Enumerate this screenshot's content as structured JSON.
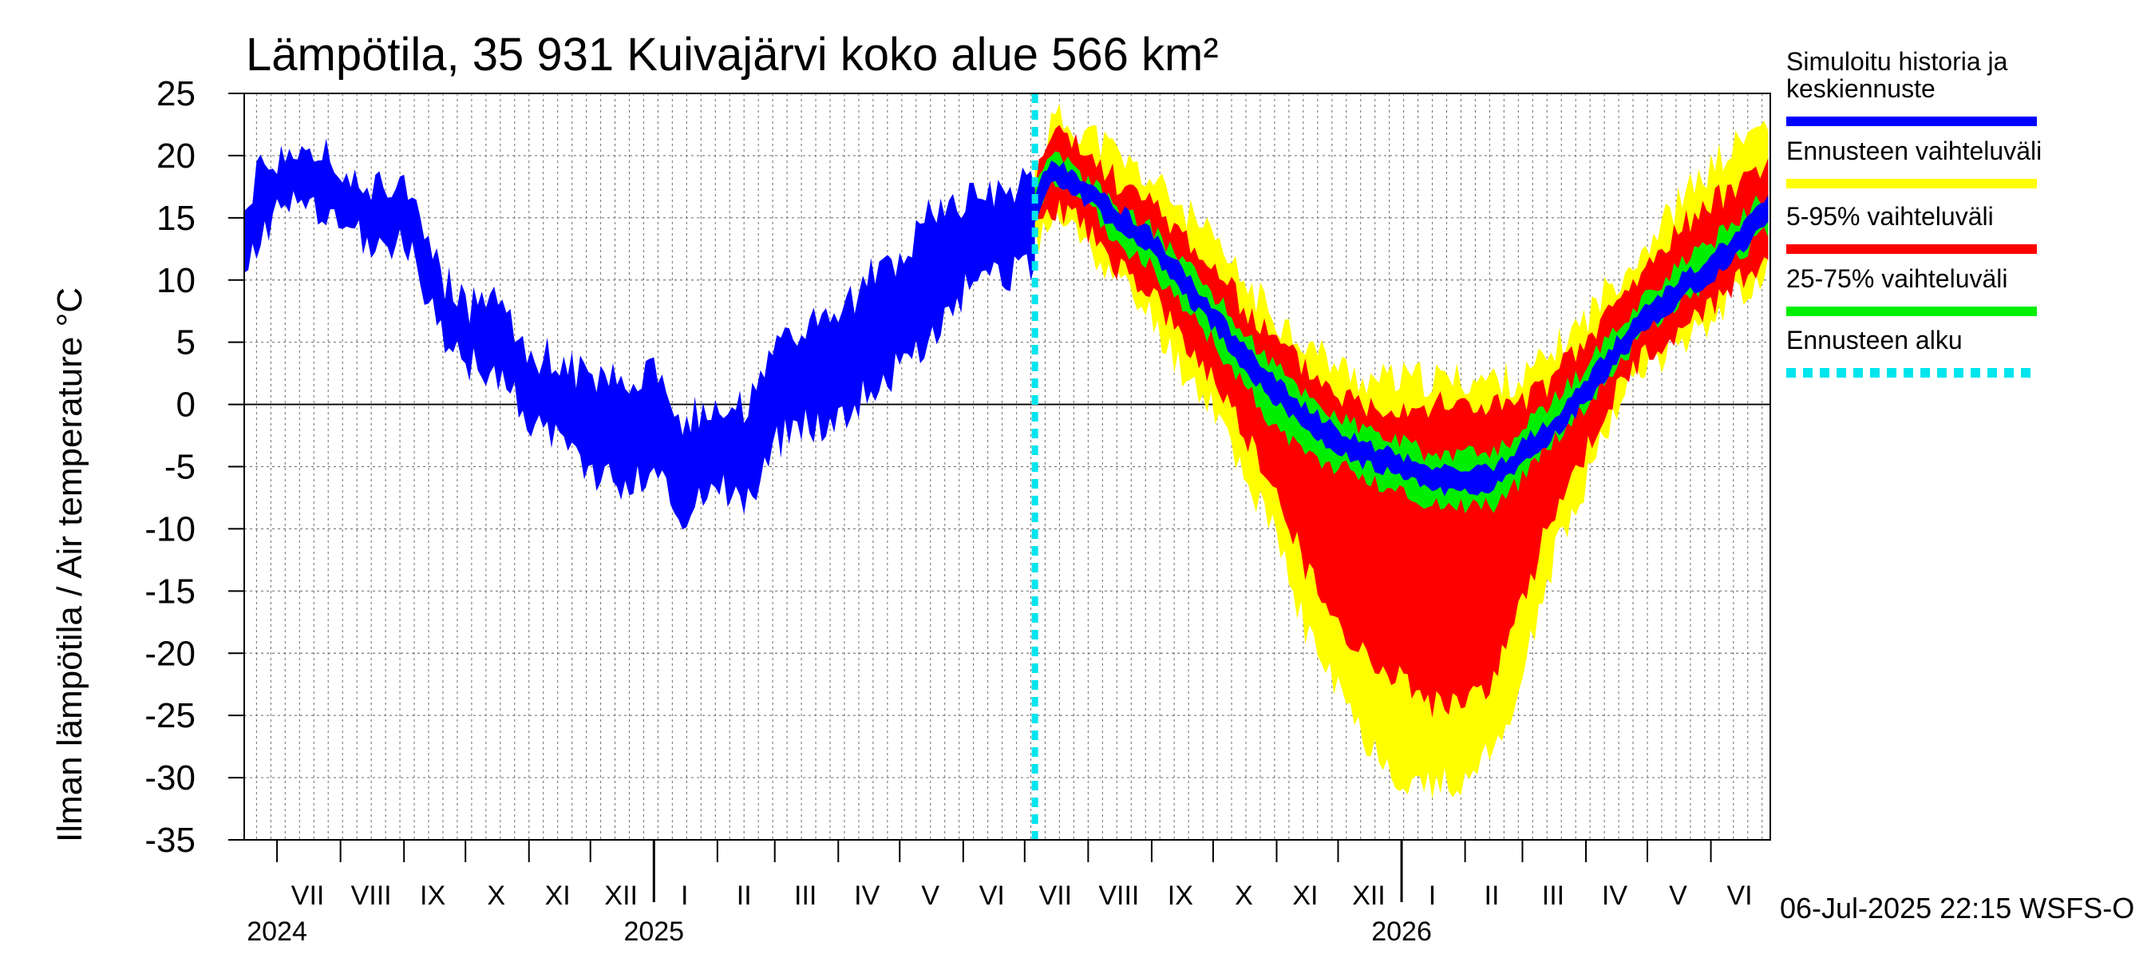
{
  "chart_data": {
    "type": "area",
    "title": "Lämpötila, 35 931 Kuivajärvi koko alue 566 km²",
    "ylabel": "Ilman lämpötila / Air temperature    °C",
    "ylim": [
      -35,
      25
    ],
    "yticks": [
      25,
      20,
      15,
      10,
      5,
      0,
      -5,
      -10,
      -15,
      -20,
      -25,
      -30,
      -35
    ],
    "x_range": [
      "2024-06-15",
      "2026-06-30"
    ],
    "month_labels": [
      {
        "label": "VII",
        "date": "2024-07-16"
      },
      {
        "label": "VIII",
        "date": "2024-08-16"
      },
      {
        "label": "IX",
        "date": "2024-09-15"
      },
      {
        "label": "X",
        "date": "2024-10-16"
      },
      {
        "label": "XI",
        "date": "2024-11-15"
      },
      {
        "label": "XII",
        "date": "2024-12-16"
      },
      {
        "label": "I",
        "date": "2025-01-16"
      },
      {
        "label": "II",
        "date": "2025-02-14"
      },
      {
        "label": "III",
        "date": "2025-03-16"
      },
      {
        "label": "IV",
        "date": "2025-04-15"
      },
      {
        "label": "V",
        "date": "2025-05-16"
      },
      {
        "label": "VI",
        "date": "2025-06-15"
      },
      {
        "label": "VII",
        "date": "2025-07-16"
      },
      {
        "label": "VIII",
        "date": "2025-08-16"
      },
      {
        "label": "IX",
        "date": "2025-09-15"
      },
      {
        "label": "X",
        "date": "2025-10-16"
      },
      {
        "label": "XI",
        "date": "2025-11-15"
      },
      {
        "label": "XII",
        "date": "2025-12-16"
      },
      {
        "label": "I",
        "date": "2026-01-16"
      },
      {
        "label": "II",
        "date": "2026-02-14"
      },
      {
        "label": "III",
        "date": "2026-03-16"
      },
      {
        "label": "IV",
        "date": "2026-04-15"
      },
      {
        "label": "V",
        "date": "2026-05-16"
      },
      {
        "label": "VI",
        "date": "2026-06-15"
      }
    ],
    "year_labels": [
      {
        "label": "2024",
        "date": "2024-07-01"
      },
      {
        "label": "2025",
        "date": "2025-01-01"
      },
      {
        "label": "2026",
        "date": "2026-01-01"
      }
    ],
    "forecast_start": "2025-07-06",
    "legend_position": "right",
    "legend": [
      {
        "label": "Simuloitu historia ja keskiennuste",
        "color": "#0000ff",
        "style": "solid"
      },
      {
        "label": "Ennusteen vaihteluväli",
        "color": "#ffff00",
        "style": "solid"
      },
      {
        "label": "5-95% vaihteluväli",
        "color": "#ff0000",
        "style": "solid"
      },
      {
        "label": "25-75% vaihteluväli",
        "color": "#00ee00",
        "style": "solid"
      },
      {
        "label": "Ennusteen alku",
        "color": "#00e5ee",
        "style": "dashed"
      }
    ],
    "history": {
      "name": "Simuloitu historia ja keskiennuste",
      "color": "#0000ff",
      "x": [
        "2024-06-15",
        "2024-07-01",
        "2024-07-15",
        "2024-08-01",
        "2024-08-15",
        "2024-09-01",
        "2024-09-10",
        "2024-09-20",
        "2024-10-01",
        "2024-10-15",
        "2024-11-01",
        "2024-11-15",
        "2024-12-01",
        "2024-12-15",
        "2025-01-01",
        "2025-01-15",
        "2025-02-01",
        "2025-02-15",
        "2025-03-01",
        "2025-03-15",
        "2025-04-01",
        "2025-04-15",
        "2025-05-01",
        "2025-05-15",
        "2025-06-01",
        "2025-06-15",
        "2025-07-06"
      ],
      "low": [
        12,
        15,
        16,
        14,
        13,
        13,
        10,
        5,
        3,
        3,
        -1,
        -3,
        -5,
        -7,
        -5,
        -9,
        -6,
        -8,
        -3,
        -2,
        -1,
        1,
        3,
        5,
        9,
        10,
        11
      ],
      "high": [
        17,
        20,
        21,
        19,
        17,
        18,
        15,
        10,
        8,
        8,
        4,
        4,
        2,
        2,
        3,
        -1,
        0,
        0,
        4,
        6,
        7,
        10,
        12,
        15,
        16,
        17,
        18
      ]
    },
    "forecast": {
      "x": [
        "2025-07-06",
        "2025-07-15",
        "2025-08-01",
        "2025-08-15",
        "2025-09-01",
        "2025-09-15",
        "2025-10-01",
        "2025-10-15",
        "2025-11-01",
        "2025-11-15",
        "2025-12-01",
        "2025-12-15",
        "2026-01-01",
        "2026-01-15",
        "2026-02-01",
        "2026-02-15",
        "2026-03-01",
        "2026-03-15",
        "2026-04-01",
        "2026-04-15",
        "2026-05-01",
        "2026-05-15",
        "2026-06-01",
        "2026-06-15",
        "2026-06-30"
      ],
      "median": [
        16,
        19,
        17,
        15,
        13,
        10,
        7,
        4,
        1,
        -1,
        -3,
        -4,
        -5,
        -6,
        -6,
        -6,
        -4,
        -2,
        1,
        4,
        7,
        9,
        11,
        13,
        16
      ],
      "p25": [
        15,
        18,
        16,
        13,
        11,
        8,
        5,
        2,
        -2,
        -4,
        -5,
        -6,
        -7,
        -8,
        -8,
        -8,
        -6,
        -3,
        0,
        3,
        6,
        8,
        10,
        12,
        14
      ],
      "p75": [
        17,
        20,
        18,
        16,
        14,
        12,
        9,
        6,
        3,
        1,
        -1,
        -2,
        -3,
        -4,
        -4,
        -4,
        -2,
        0,
        3,
        6,
        9,
        11,
        13,
        15,
        17
      ],
      "p5": [
        14,
        16,
        14,
        11,
        9,
        5,
        2,
        -2,
        -7,
        -13,
        -18,
        -20,
        -22,
        -24,
        -24,
        -22,
        -16,
        -9,
        -4,
        1,
        4,
        6,
        8,
        10,
        12
      ],
      "p95": [
        18,
        22,
        20,
        18,
        16,
        14,
        11,
        8,
        5,
        3,
        1,
        0,
        0,
        0,
        0,
        0,
        0,
        2,
        5,
        8,
        11,
        14,
        16,
        18,
        20
      ],
      "min": [
        13,
        15,
        13,
        10,
        7,
        3,
        0,
        -5,
        -11,
        -18,
        -23,
        -27,
        -30,
        -31,
        -30,
        -28,
        -22,
        -13,
        -6,
        0,
        3,
        5,
        7,
        9,
        11
      ],
      "max": [
        19,
        23,
        22,
        20,
        18,
        16,
        13,
        10,
        7,
        5,
        3,
        2,
        2,
        2,
        2,
        2,
        2,
        4,
        7,
        10,
        13,
        16,
        19,
        21,
        23
      ]
    }
  },
  "footer": {
    "timestamp": "06-Jul-2025 22:15 WSFS-O"
  },
  "colors": {
    "history": "#0000ff",
    "range": "#ffff00",
    "p5_95": "#ff0000",
    "p25_75": "#00ee00",
    "forecast_start": "#00e5ee",
    "grid": "#000000"
  }
}
